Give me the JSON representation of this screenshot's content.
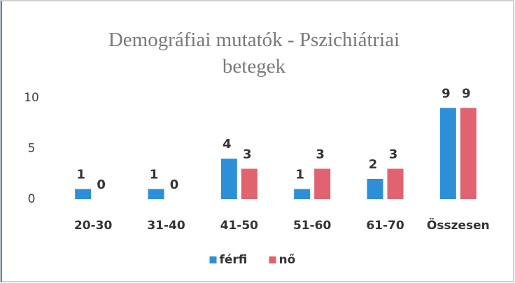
{
  "chart_data": {
    "type": "bar",
    "title": "Demográfiai mutatók - Pszichiátriai betegek",
    "categories": [
      "20-30",
      "31-40",
      "41-50",
      "51-60",
      "61-70",
      "Összesen"
    ],
    "series": [
      {
        "name": "férfi",
        "color": "#2e8fd9",
        "values": [
          1,
          1,
          4,
          1,
          2,
          9
        ]
      },
      {
        "name": "nő",
        "color": "#e0636f",
        "values": [
          0,
          0,
          3,
          3,
          3,
          9
        ]
      }
    ],
    "ylim": [
      0,
      10
    ],
    "yticks": [
      0,
      5,
      10
    ],
    "grid": false,
    "legend": "bottom"
  }
}
